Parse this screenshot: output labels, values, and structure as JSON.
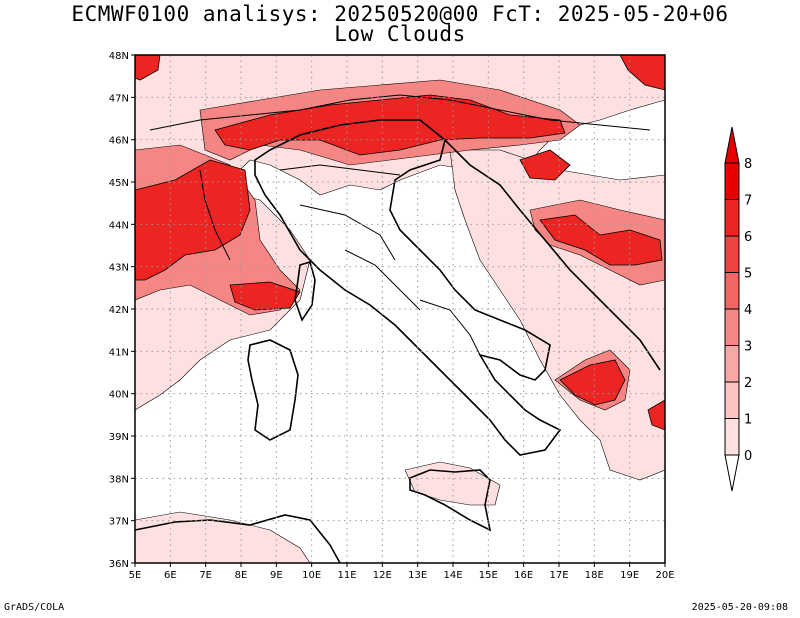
{
  "title": {
    "line1": "ECMWF0100 analisys: 20250520@00 FcT: 2025-05-20+06",
    "line2": "Low Clouds"
  },
  "map": {
    "lon_range": [
      5,
      20
    ],
    "lat_range": [
      36,
      48
    ],
    "lon_labels": [
      "5E",
      "6E",
      "7E",
      "8E",
      "9E",
      "10E",
      "11E",
      "12E",
      "13E",
      "14E",
      "15E",
      "16E",
      "17E",
      "18E",
      "19E",
      "20E"
    ],
    "lat_labels": [
      "36N",
      "37N",
      "38N",
      "39N",
      "40N",
      "41N",
      "42N",
      "43N",
      "44N",
      "45N",
      "46N",
      "47N",
      "48N"
    ],
    "grid": "dotted",
    "region": "Italy and surrounding areas"
  },
  "colorbar": {
    "levels": [
      "0",
      "1",
      "2",
      "3",
      "4",
      "5",
      "6",
      "7",
      "8"
    ],
    "colors": [
      "#ffffff",
      "#fde0df",
      "#fbc4c3",
      "#f8a7a5",
      "#f58684",
      "#f26563",
      "#ef4442",
      "#ec2422",
      "#e80000"
    ],
    "extends": "both"
  },
  "footer": {
    "left": "GrADS/COLA",
    "right": "2025-05-20-09:08"
  }
}
